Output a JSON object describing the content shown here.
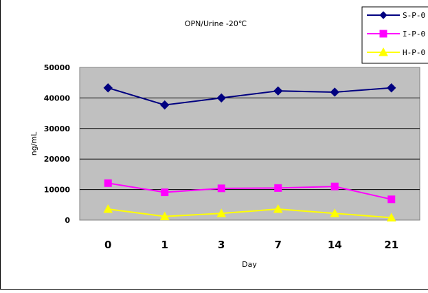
{
  "chart_data": {
    "type": "line",
    "title": "OPN/Urine -20℃",
    "xlabel": "Day",
    "ylabel": "ng/mL",
    "categories": [
      "0",
      "1",
      "3",
      "7",
      "14",
      "21"
    ],
    "ylim": [
      0,
      50000
    ],
    "yticks": [
      "0",
      "10000",
      "20000",
      "30000",
      "40000",
      "50000"
    ],
    "grid": true,
    "legend": "top-right",
    "series": [
      {
        "name": "S-P-0",
        "values": [
          43300,
          37700,
          40000,
          42300,
          41900,
          43300
        ],
        "color": "#000080",
        "marker": "diamond"
      },
      {
        "name": "I-P-0",
        "values": [
          12100,
          9100,
          10400,
          10500,
          11000,
          6800
        ],
        "color": "#ff00ff",
        "marker": "square"
      },
      {
        "name": "H-P-0",
        "values": [
          3600,
          1200,
          2200,
          3600,
          2200,
          800
        ],
        "color": "#ffff00",
        "marker": "triangle"
      }
    ],
    "plot_background": "#c0c0c0"
  }
}
